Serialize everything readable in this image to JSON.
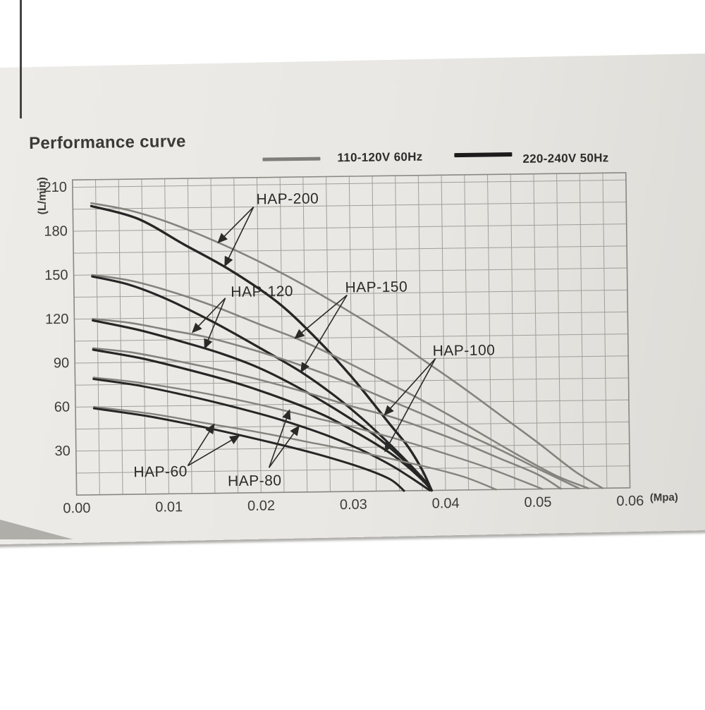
{
  "header": {
    "title": "Performance curve"
  },
  "legend": [
    {
      "label": "110-120V 60Hz",
      "color": "#807e7a"
    },
    {
      "label": "220-240V 50Hz",
      "color": "#1c1c1c"
    }
  ],
  "chart_data": {
    "type": "line",
    "title": "Performance curve",
    "xlabel": "(Mpa)",
    "ylabel": "(L/min)",
    "xlim": [
      0,
      0.06
    ],
    "ylim": [
      0,
      215
    ],
    "x_ticks": [
      [
        0,
        "0.00"
      ],
      [
        0.01,
        "0.01"
      ],
      [
        0.02,
        "0.02"
      ],
      [
        0.03,
        "0.03"
      ],
      [
        0.04,
        "0.04"
      ],
      [
        0.05,
        "0.05"
      ],
      [
        0.06,
        "0.06"
      ]
    ],
    "y_ticks": [
      30,
      60,
      90,
      120,
      150,
      180,
      210
    ],
    "grid": {
      "on": true,
      "x_minor": 0.0025,
      "y_minor": 15
    },
    "legend_position": "top",
    "theme": {
      "grid_color": "#a19f99",
      "border_color": "#8a8883",
      "text_color": "#3c3b38",
      "label_color": "#2a2a28",
      "paper_color": "#e9e7e3"
    },
    "series": [
      {
        "model": "HAP-200",
        "voltage": "110-120V 60Hz",
        "color": "#85837e",
        "width": 2.6,
        "points": [
          [
            0.002,
            199
          ],
          [
            0.006,
            194
          ],
          [
            0.01,
            186
          ],
          [
            0.015,
            173
          ],
          [
            0.02,
            158
          ],
          [
            0.025,
            141
          ],
          [
            0.03,
            122
          ],
          [
            0.034,
            106
          ],
          [
            0.038,
            88
          ],
          [
            0.042,
            70
          ],
          [
            0.046,
            51
          ],
          [
            0.05,
            32
          ],
          [
            0.054,
            12
          ],
          [
            0.057,
            0
          ]
        ]
      },
      {
        "model": "HAP-200",
        "voltage": "220-240V 50Hz",
        "color": "#262626",
        "width": 3.4,
        "points": [
          [
            0.002,
            197
          ],
          [
            0.007,
            188
          ],
          [
            0.012,
            170
          ],
          [
            0.017,
            152
          ],
          [
            0.022,
            130
          ],
          [
            0.026,
            106
          ],
          [
            0.03,
            78
          ],
          [
            0.034,
            46
          ],
          [
            0.036,
            30
          ],
          [
            0.0375,
            14
          ],
          [
            0.0385,
            0
          ]
        ]
      },
      {
        "model": "HAP-150",
        "voltage": "110-120V 60Hz",
        "color": "#85837e",
        "width": 2.6,
        "points": [
          [
            0.002,
            150
          ],
          [
            0.006,
            146
          ],
          [
            0.01,
            139
          ],
          [
            0.015,
            128
          ],
          [
            0.02,
            115
          ],
          [
            0.024,
            105
          ],
          [
            0.028,
            93
          ],
          [
            0.032,
            80
          ],
          [
            0.036,
            67
          ],
          [
            0.04,
            53
          ],
          [
            0.044,
            38
          ],
          [
            0.048,
            23
          ],
          [
            0.052,
            9
          ],
          [
            0.0555,
            0
          ]
        ]
      },
      {
        "model": "HAP-150",
        "voltage": "220-240V 50Hz",
        "color": "#262626",
        "width": 3.2,
        "points": [
          [
            0.002,
            149
          ],
          [
            0.006,
            143
          ],
          [
            0.01,
            133
          ],
          [
            0.015,
            117
          ],
          [
            0.02,
            99
          ],
          [
            0.0245,
            82
          ],
          [
            0.028,
            66
          ],
          [
            0.031,
            50
          ],
          [
            0.034,
            32
          ],
          [
            0.036,
            19
          ],
          [
            0.038,
            5
          ],
          [
            0.0385,
            0
          ]
        ]
      },
      {
        "model": "HAP-120",
        "voltage": "110-120V 60Hz",
        "color": "#85837e",
        "width": 2.6,
        "points": [
          [
            0.002,
            120
          ],
          [
            0.006,
            117
          ],
          [
            0.01,
            112
          ],
          [
            0.014,
            107
          ],
          [
            0.018,
            100
          ],
          [
            0.022,
            92
          ],
          [
            0.026,
            83
          ],
          [
            0.03,
            73
          ],
          [
            0.034,
            62
          ],
          [
            0.038,
            51
          ],
          [
            0.042,
            39
          ],
          [
            0.046,
            27
          ],
          [
            0.05,
            14
          ],
          [
            0.0545,
            0
          ]
        ]
      },
      {
        "model": "HAP-120",
        "voltage": "220-240V 50Hz",
        "color": "#262626",
        "width": 3.2,
        "points": [
          [
            0.002,
            119
          ],
          [
            0.007,
            112
          ],
          [
            0.012,
            103
          ],
          [
            0.016,
            95
          ],
          [
            0.02,
            85
          ],
          [
            0.024,
            72
          ],
          [
            0.028,
            57
          ],
          [
            0.032,
            40
          ],
          [
            0.035,
            24
          ],
          [
            0.037,
            11
          ],
          [
            0.0385,
            0
          ]
        ]
      },
      {
        "model": "HAP-100",
        "voltage": "110-120V 60Hz",
        "color": "#85837e",
        "width": 2.6,
        "points": [
          [
            0.002,
            100
          ],
          [
            0.006,
            97
          ],
          [
            0.01,
            92
          ],
          [
            0.015,
            85
          ],
          [
            0.02,
            77
          ],
          [
            0.025,
            68
          ],
          [
            0.03,
            58
          ],
          [
            0.034,
            51
          ],
          [
            0.038,
            42
          ],
          [
            0.042,
            32
          ],
          [
            0.046,
            21
          ],
          [
            0.05,
            10
          ],
          [
            0.0525,
            0
          ]
        ]
      },
      {
        "model": "HAP-100",
        "voltage": "220-240V 50Hz",
        "color": "#262626",
        "width": 3.2,
        "points": [
          [
            0.002,
            99
          ],
          [
            0.007,
            93
          ],
          [
            0.012,
            85
          ],
          [
            0.017,
            76
          ],
          [
            0.022,
            65
          ],
          [
            0.027,
            52
          ],
          [
            0.031,
            38
          ],
          [
            0.034,
            26
          ],
          [
            0.036,
            16
          ],
          [
            0.038,
            4
          ],
          [
            0.0385,
            0
          ]
        ]
      },
      {
        "model": "HAP-80",
        "voltage": "110-120V 60Hz",
        "color": "#85837e",
        "width": 2.4,
        "points": [
          [
            0.002,
            80
          ],
          [
            0.006,
            77
          ],
          [
            0.01,
            73
          ],
          [
            0.015,
            67
          ],
          [
            0.02,
            60
          ],
          [
            0.025,
            52
          ],
          [
            0.03,
            44
          ],
          [
            0.035,
            35
          ],
          [
            0.04,
            25
          ],
          [
            0.045,
            14
          ],
          [
            0.0505,
            0
          ]
        ]
      },
      {
        "model": "HAP-80",
        "voltage": "220-240V 50Hz",
        "color": "#262626",
        "width": 3.0,
        "points": [
          [
            0.002,
            79
          ],
          [
            0.007,
            74
          ],
          [
            0.012,
            67
          ],
          [
            0.017,
            59
          ],
          [
            0.022,
            50
          ],
          [
            0.027,
            39
          ],
          [
            0.031,
            28
          ],
          [
            0.034,
            18
          ],
          [
            0.036,
            10
          ],
          [
            0.0383,
            0
          ]
        ]
      },
      {
        "model": "HAP-60",
        "voltage": "110-120V 60Hz",
        "color": "#85837e",
        "width": 2.4,
        "points": [
          [
            0.002,
            60
          ],
          [
            0.008,
            55
          ],
          [
            0.014,
            48
          ],
          [
            0.02,
            41
          ],
          [
            0.026,
            33
          ],
          [
            0.032,
            25
          ],
          [
            0.038,
            16
          ],
          [
            0.042,
            9
          ],
          [
            0.0455,
            0
          ]
        ]
      },
      {
        "model": "HAP-60",
        "voltage": "220-240V 50Hz",
        "color": "#262626",
        "width": 3.0,
        "points": [
          [
            0.002,
            59
          ],
          [
            0.008,
            53
          ],
          [
            0.014,
            45
          ],
          [
            0.02,
            36
          ],
          [
            0.026,
            26
          ],
          [
            0.031,
            16
          ],
          [
            0.034,
            8
          ],
          [
            0.0355,
            0
          ]
        ]
      }
    ],
    "annotations": [
      {
        "label": "HAP-200",
        "text_pos": [
          0.0199,
          200
        ],
        "origin": [
          0.0196,
          195
        ],
        "tips": [
          [
            0.0157,
            171
          ],
          [
            0.0164,
            155
          ]
        ]
      },
      {
        "label": "HAP-120",
        "text_pos": [
          0.017,
          137
        ],
        "origin": [
          0.0164,
          133
        ],
        "tips": [
          [
            0.0128,
            110
          ],
          [
            0.0141,
            99
          ]
        ]
      },
      {
        "label": "HAP-150",
        "text_pos": [
          0.0294,
          139
        ],
        "origin": [
          0.0296,
          134
        ],
        "tips": [
          [
            0.0239,
            105
          ],
          [
            0.0245,
            82
          ]
        ]
      },
      {
        "label": "HAP-100",
        "text_pos": [
          0.0388,
          95
        ],
        "origin": [
          0.0391,
          90
        ],
        "tips": [
          [
            0.0335,
            52
          ],
          [
            0.0335,
            27
          ]
        ]
      },
      {
        "label": "HAP-60",
        "text_pos": [
          0.0062,
          15
        ],
        "origin": [
          0.0121,
          19
        ],
        "tips": [
          [
            0.015,
            47
          ],
          [
            0.0177,
            39
          ]
        ]
      },
      {
        "label": "HAP-80",
        "text_pos": [
          0.0164,
          8
        ],
        "origin": [
          0.0209,
          17
        ],
        "tips": [
          [
            0.0232,
            56
          ],
          [
            0.0242,
            45
          ]
        ]
      }
    ]
  }
}
